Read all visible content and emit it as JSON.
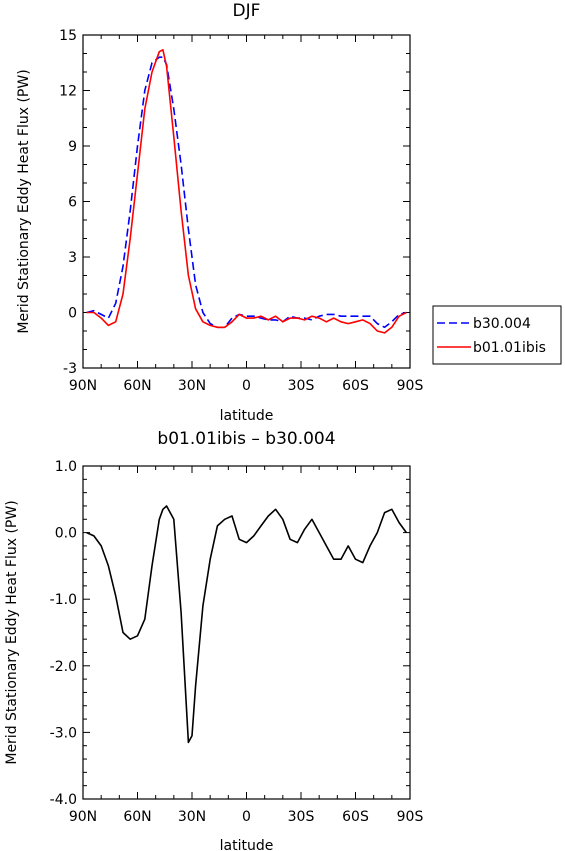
{
  "chart_data": [
    {
      "type": "line",
      "title": "DJF",
      "xlabel": "latitude",
      "ylabel": "Merid Stationary Eddy Heat Flux (PW)",
      "xlim": [
        90,
        -90
      ],
      "ylim": [
        -3,
        15
      ],
      "x_ticks": [
        90,
        60,
        30,
        0,
        -30,
        -60,
        -90
      ],
      "x_tick_labels": [
        "90N",
        "60N",
        "30N",
        "0",
        "30S",
        "60S",
        "90S"
      ],
      "y_ticks": [
        -3,
        0,
        3,
        6,
        9,
        12,
        15
      ],
      "y_tick_labels": [
        "-3",
        "0",
        "3",
        "6",
        "9",
        "12",
        "15"
      ],
      "x": [
        88,
        84,
        80,
        76,
        72,
        68,
        64,
        60,
        56,
        52,
        48,
        46,
        44,
        40,
        36,
        32,
        28,
        24,
        20,
        16,
        12,
        8,
        4,
        0,
        -4,
        -8,
        -12,
        -16,
        -20,
        -24,
        -28,
        -32,
        -36,
        -40,
        -44,
        -48,
        -52,
        -56,
        -60,
        -64,
        -68,
        -72,
        -76,
        -80,
        -84,
        -88
      ],
      "legend": {
        "placement": "right",
        "entries": [
          "b30.004",
          "b01.01ibis"
        ]
      },
      "series": [
        {
          "name": "b30.004",
          "color": "#0000ff",
          "dash": "dashed",
          "values": [
            0.0,
            0.1,
            -0.1,
            -0.3,
            0.5,
            2.5,
            5.5,
            9.0,
            12.0,
            13.5,
            13.8,
            13.8,
            13.4,
            11.0,
            8.0,
            4.5,
            1.5,
            0.0,
            -0.6,
            -0.8,
            -0.8,
            -0.3,
            -0.1,
            -0.2,
            -0.2,
            -0.3,
            -0.4,
            -0.4,
            -0.5,
            -0.2,
            -0.3,
            -0.3,
            -0.4,
            -0.2,
            -0.1,
            -0.1,
            -0.2,
            -0.2,
            -0.2,
            -0.2,
            -0.2,
            -0.6,
            -0.8,
            -0.5,
            -0.1,
            0.0
          ]
        },
        {
          "name": "b01.01ibis",
          "color": "#ff0000",
          "dash": "solid",
          "values": [
            0.0,
            0.0,
            -0.3,
            -0.7,
            -0.5,
            1.0,
            4.0,
            7.5,
            11.0,
            13.0,
            14.1,
            14.2,
            13.3,
            9.5,
            5.5,
            2.0,
            0.2,
            -0.5,
            -0.7,
            -0.8,
            -0.8,
            -0.5,
            -0.1,
            -0.3,
            -0.3,
            -0.2,
            -0.4,
            -0.2,
            -0.5,
            -0.3,
            -0.3,
            -0.4,
            -0.2,
            -0.3,
            -0.5,
            -0.3,
            -0.5,
            -0.6,
            -0.5,
            -0.4,
            -0.6,
            -1.0,
            -1.1,
            -0.8,
            -0.2,
            0.0
          ]
        }
      ]
    },
    {
      "type": "line",
      "title": "b01.01ibis – b30.004",
      "xlabel": "latitude",
      "ylabel": "Merid Stationary Eddy Heat Flux (PW)",
      "xlim": [
        90,
        -90
      ],
      "ylim": [
        -4,
        1
      ],
      "x_ticks": [
        90,
        60,
        30,
        0,
        -30,
        -60,
        -90
      ],
      "x_tick_labels": [
        "90N",
        "60N",
        "30N",
        "0",
        "30S",
        "60S",
        "90S"
      ],
      "y_ticks": [
        -4,
        -3,
        -2,
        -1,
        0,
        1
      ],
      "y_tick_labels": [
        "-4.0",
        "-3.0",
        "-2.0",
        "-1.0",
        "0.0",
        "1.0"
      ],
      "x": [
        88,
        84,
        80,
        76,
        72,
        68,
        64,
        60,
        56,
        52,
        48,
        46,
        44,
        40,
        36,
        32,
        30,
        28,
        24,
        20,
        16,
        12,
        8,
        4,
        0,
        -4,
        -8,
        -12,
        -16,
        -20,
        -24,
        -28,
        -32,
        -36,
        -40,
        -44,
        -48,
        -52,
        -56,
        -60,
        -64,
        -68,
        -72,
        -76,
        -80,
        -84,
        -88
      ],
      "series": [
        {
          "color": "#000000",
          "dash": "solid",
          "values": [
            0.0,
            -0.05,
            -0.2,
            -0.5,
            -0.95,
            -1.5,
            -1.6,
            -1.55,
            -1.3,
            -0.5,
            0.2,
            0.35,
            0.4,
            0.2,
            -1.2,
            -3.15,
            -3.05,
            -2.3,
            -1.1,
            -0.4,
            0.1,
            0.2,
            0.25,
            -0.1,
            -0.15,
            -0.05,
            0.1,
            0.25,
            0.35,
            0.2,
            -0.1,
            -0.15,
            0.05,
            0.2,
            0.0,
            -0.2,
            -0.4,
            -0.4,
            -0.2,
            -0.4,
            -0.45,
            -0.2,
            0.0,
            0.3,
            0.35,
            0.15,
            0.0
          ]
        }
      ]
    }
  ]
}
